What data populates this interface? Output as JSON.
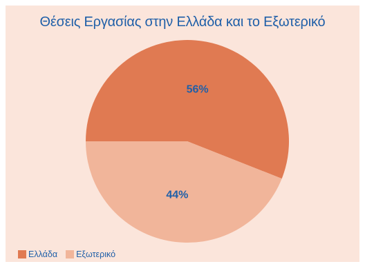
{
  "chart_data": {
    "type": "pie",
    "title": "Θέσεις Εργασίας στην Ελλάδα και το Εξωτερικό",
    "slices": [
      {
        "label": "Ελλάδα",
        "value": 56,
        "display": "56%",
        "color": "#e07a52"
      },
      {
        "label": "Εξωτερικό",
        "value": 44,
        "display": "44%",
        "color": "#f1b59a"
      }
    ],
    "legend_position": "bottom-left"
  },
  "colors": {
    "panel_background": "#fbe5db",
    "title_text": "#1f5fa8",
    "label_text": "#1f5fa8"
  }
}
